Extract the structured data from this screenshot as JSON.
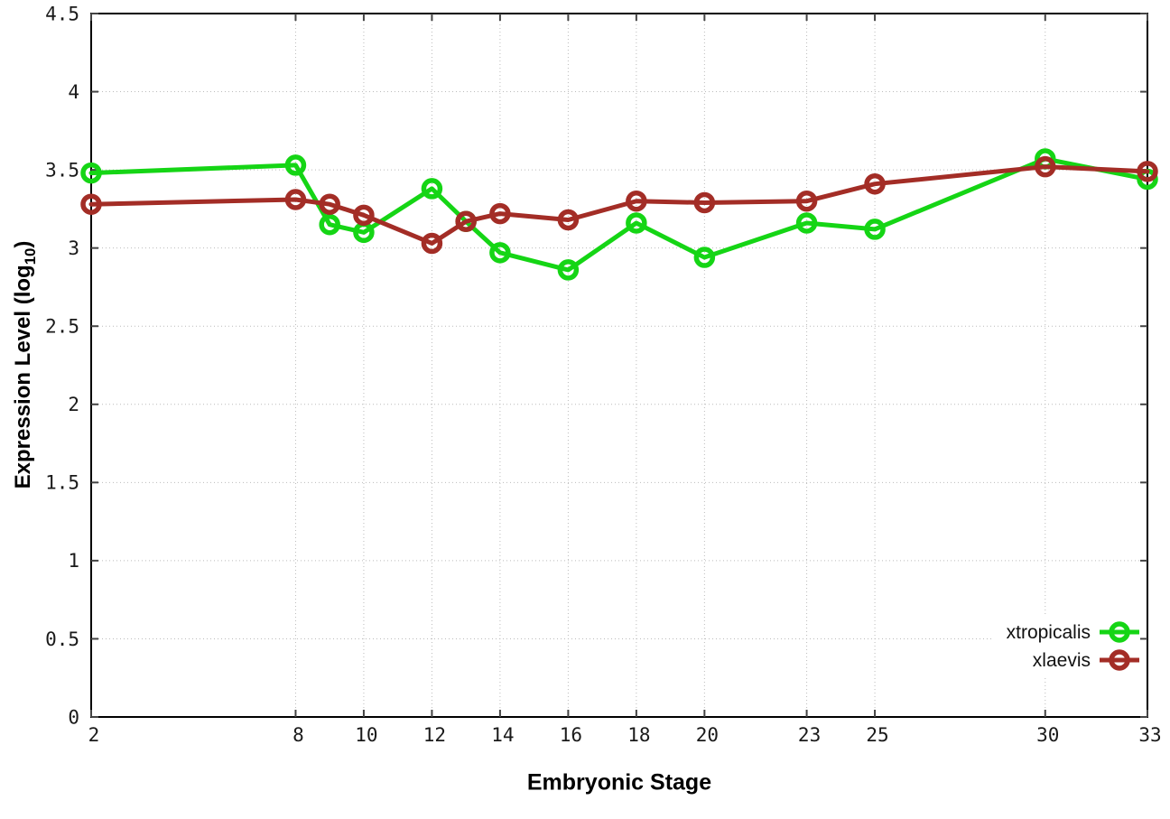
{
  "chart_data": {
    "type": "line",
    "title": "",
    "xlabel": "Embryonic Stage",
    "ylabel": {
      "main": "Expression Level (log",
      "sub": "10",
      "end": ")"
    },
    "xlim": [
      2,
      33
    ],
    "ylim": [
      0,
      4.5
    ],
    "grid": true,
    "legend_position": "bottom-right",
    "x": [
      2,
      8,
      9,
      10,
      12,
      13,
      14,
      16,
      18,
      20,
      23,
      25,
      30,
      33
    ],
    "xticks": [
      "2",
      "8",
      "10",
      "12",
      "14",
      "16",
      "18",
      "20",
      "23",
      "25",
      "30",
      "33"
    ],
    "xtick_values": [
      2,
      8,
      10,
      12,
      14,
      16,
      18,
      20,
      23,
      25,
      30,
      33
    ],
    "yticks": [
      "0",
      "0.5",
      "1",
      "1.5",
      "2",
      "2.5",
      "3",
      "3.5",
      "4",
      "4.5"
    ],
    "ytick_values": [
      0,
      0.5,
      1,
      1.5,
      2,
      2.5,
      3,
      3.5,
      4,
      4.5
    ],
    "series": [
      {
        "name": "xtropicalis",
        "color": "#15D515",
        "values": [
          3.48,
          3.53,
          3.15,
          3.1,
          3.38,
          3.17,
          2.97,
          2.86,
          3.16,
          2.94,
          3.16,
          3.12,
          3.57,
          3.44
        ]
      },
      {
        "name": "xlaevis",
        "color": "#A32D26",
        "values": [
          3.28,
          3.31,
          3.28,
          3.21,
          3.03,
          3.17,
          3.22,
          3.18,
          3.3,
          3.29,
          3.3,
          3.41,
          3.52,
          3.49
        ]
      }
    ]
  },
  "colors": {
    "grid": "#bbbbbb",
    "border": "#000000",
    "tick": "#444444",
    "tick_label": "#1a1a1a",
    "background": "#ffffff"
  }
}
